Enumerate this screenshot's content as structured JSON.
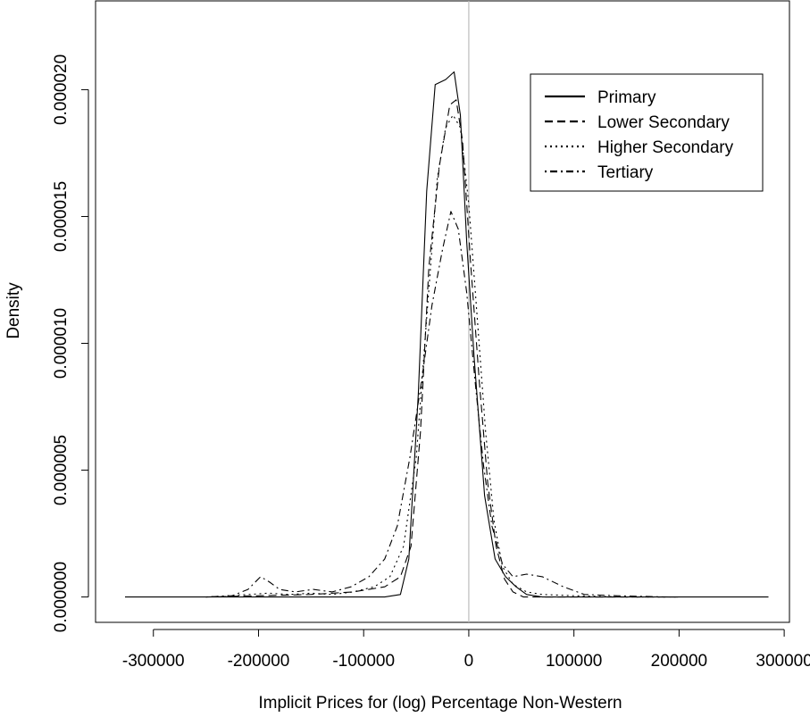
{
  "chart_data": {
    "type": "line",
    "title": "",
    "xlabel": "Implicit Prices for (log) Percentage Non-Western",
    "ylabel": "Density",
    "xlim": [
      -355000,
      305000
    ],
    "ylim": [
      -1e-06,
      2.35e-05
    ],
    "x_ticks": [
      -300000,
      -200000,
      -100000,
      0,
      100000,
      200000,
      300000
    ],
    "x_tick_labels": [
      "-300000",
      "-200000",
      "-100000",
      "0",
      "100000",
      "200000",
      "300000"
    ],
    "y_ticks": [
      0,
      5e-06,
      1e-05,
      1.5e-05,
      2e-05
    ],
    "y_tick_labels": [
      "0.000000",
      "0.000005",
      "0.000010",
      "0.000015",
      "0.000020"
    ],
    "reference_line_x": 0,
    "grid": false,
    "legend_position": "top-right",
    "series": [
      {
        "name": "Primary",
        "line_style": "solid",
        "points": [
          [
            -327000,
            0
          ],
          [
            -150000,
            0
          ],
          [
            -80000,
            0
          ],
          [
            -65000,
            1e-07
          ],
          [
            -57000,
            1.5e-06
          ],
          [
            -48000,
            8e-06
          ],
          [
            -40000,
            1.6e-05
          ],
          [
            -32000,
            2.02e-05
          ],
          [
            -22000,
            2.04e-05
          ],
          [
            -14000,
            2.07e-05
          ],
          [
            -8000,
            1.9e-05
          ],
          [
            -2000,
            1.4e-05
          ],
          [
            5000,
            9.5e-06
          ],
          [
            15000,
            4e-06
          ],
          [
            25000,
            1.5e-06
          ],
          [
            35000,
            8e-07
          ],
          [
            45000,
            4e-07
          ],
          [
            55000,
            1e-07
          ],
          [
            70000,
            0
          ],
          [
            150000,
            0
          ],
          [
            285000,
            0
          ]
        ]
      },
      {
        "name": "Lower Secondary",
        "line_style": "dashed",
        "points": [
          [
            -250000,
            0
          ],
          [
            -200000,
            5e-08
          ],
          [
            -150000,
            1e-07
          ],
          [
            -110000,
            2e-07
          ],
          [
            -80000,
            4e-07
          ],
          [
            -65000,
            8e-07
          ],
          [
            -55000,
            2e-06
          ],
          [
            -46000,
            6.5e-06
          ],
          [
            -38000,
            1.3e-05
          ],
          [
            -28000,
            1.7e-05
          ],
          [
            -18000,
            1.94e-05
          ],
          [
            -12000,
            1.96e-05
          ],
          [
            -6000,
            1.8e-05
          ],
          [
            2000,
            1.3e-05
          ],
          [
            10000,
            8.5e-06
          ],
          [
            18000,
            4.5e-06
          ],
          [
            26000,
            2e-06
          ],
          [
            34000,
            7e-07
          ],
          [
            42000,
            2e-07
          ],
          [
            52000,
            0
          ],
          [
            150000,
            0
          ],
          [
            200000,
            0
          ]
        ]
      },
      {
        "name": "Higher Secondary",
        "line_style": "dotted",
        "points": [
          [
            -250000,
            0
          ],
          [
            -230000,
            5e-08
          ],
          [
            -210000,
            1e-07
          ],
          [
            -190000,
            1.5e-07
          ],
          [
            -170000,
            1e-07
          ],
          [
            -150000,
            1.5e-07
          ],
          [
            -130000,
            1e-07
          ],
          [
            -110000,
            2e-07
          ],
          [
            -90000,
            4e-07
          ],
          [
            -75000,
            8e-07
          ],
          [
            -62000,
            2e-06
          ],
          [
            -50000,
            5.5e-06
          ],
          [
            -40000,
            1.1e-05
          ],
          [
            -30000,
            1.65e-05
          ],
          [
            -22000,
            1.85e-05
          ],
          [
            -15000,
            1.9e-05
          ],
          [
            -8000,
            1.85e-05
          ],
          [
            0,
            1.55e-05
          ],
          [
            8000,
            1.1e-05
          ],
          [
            16000,
            6.5e-06
          ],
          [
            24000,
            3e-06
          ],
          [
            32000,
            1.2e-06
          ],
          [
            42000,
            5e-07
          ],
          [
            55000,
            2e-07
          ],
          [
            70000,
            1e-07
          ],
          [
            100000,
            5e-08
          ],
          [
            150000,
            0
          ],
          [
            200000,
            0
          ]
        ]
      },
      {
        "name": "Tertiary",
        "line_style": "dotdash",
        "points": [
          [
            -250000,
            0
          ],
          [
            -225000,
            5e-08
          ],
          [
            -210000,
            3e-07
          ],
          [
            -198000,
            8e-07
          ],
          [
            -190000,
            6e-07
          ],
          [
            -180000,
            3e-07
          ],
          [
            -165000,
            2e-07
          ],
          [
            -148000,
            3e-07
          ],
          [
            -130000,
            2e-07
          ],
          [
            -112000,
            4e-07
          ],
          [
            -95000,
            8e-07
          ],
          [
            -80000,
            1.5e-06
          ],
          [
            -68000,
            2.8e-06
          ],
          [
            -56000,
            5.5e-06
          ],
          [
            -45000,
            8.5e-06
          ],
          [
            -35000,
            1.15e-05
          ],
          [
            -25000,
            1.37e-05
          ],
          [
            -17000,
            1.52e-05
          ],
          [
            -10000,
            1.45e-05
          ],
          [
            -2000,
            1.2e-05
          ],
          [
            6000,
            8.5e-06
          ],
          [
            14000,
            5.2e-06
          ],
          [
            22000,
            2.8e-06
          ],
          [
            32000,
            1.3e-06
          ],
          [
            42000,
            8e-07
          ],
          [
            55000,
            9e-07
          ],
          [
            70000,
            8e-07
          ],
          [
            90000,
            4e-07
          ],
          [
            110000,
            1e-07
          ],
          [
            140000,
            5e-08
          ],
          [
            190000,
            0
          ]
        ]
      }
    ]
  }
}
